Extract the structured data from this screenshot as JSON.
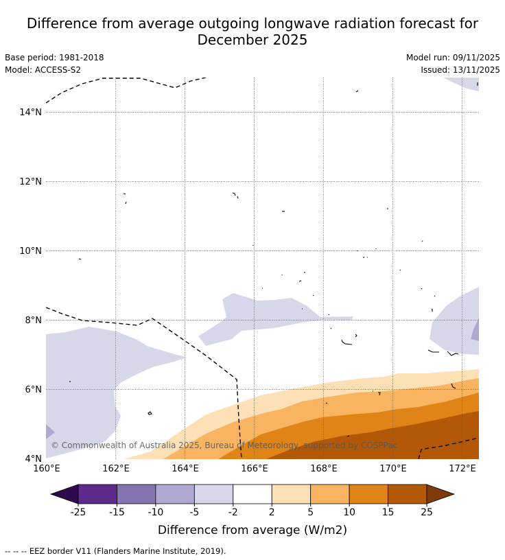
{
  "title": {
    "line1": "Difference from average outgoing longwave radiation forecast for",
    "line2": "December 2025"
  },
  "meta": {
    "base_period": "Base period: 1981-2018",
    "model": "Model: ACCESS-S2",
    "model_run": "Model run: 09/11/2025",
    "issued": "Issued: 13/11/2025"
  },
  "map": {
    "lat_labels": [
      "14°N",
      "12°N",
      "10°N",
      "8°N",
      "6°N",
      "4°N"
    ],
    "lon_labels": [
      "160°E",
      "162°E",
      "164°E",
      "166°E",
      "168°E",
      "170°E",
      "172°E"
    ],
    "copyright": "© Commonwealth of Australia 2025, Bureau of Meteorology, supported by COSPPac"
  },
  "legend": {
    "ticks": [
      "-25",
      "-15",
      "-10",
      "-5",
      "-2",
      "2",
      "5",
      "10",
      "15",
      "25"
    ],
    "colors": [
      "#5e2a8c",
      "#8674b0",
      "#b1a8d2",
      "#d7d7ea",
      "#ffffff",
      "#fde0b5",
      "#f8b461",
      "#e08418",
      "#b35806"
    ],
    "under_color": "#2d0a4e",
    "over_color": "#7f3b08",
    "title": "Difference from average (W/m2)"
  },
  "footer": {
    "eez_note": "-- -- -- EEZ border V11 (Flanders Marine Institute, 2019)."
  }
}
